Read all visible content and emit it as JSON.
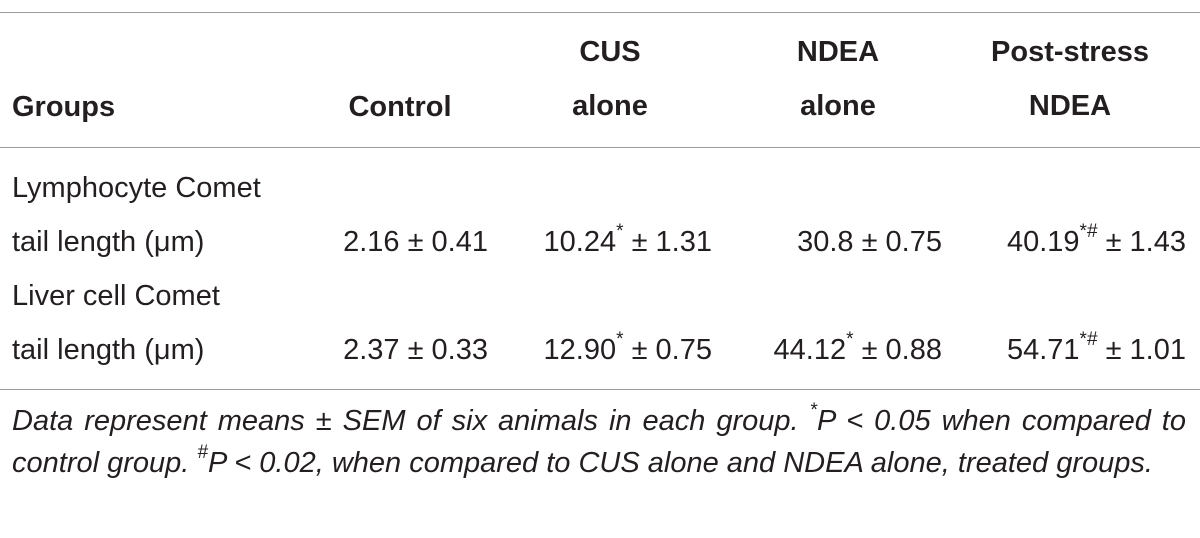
{
  "table": {
    "headers": {
      "groups": "Groups",
      "control": "Control",
      "cus": [
        "CUS",
        "alone"
      ],
      "ndea": [
        "NDEA",
        "alone"
      ],
      "post": [
        "Post-stress",
        "NDEA"
      ]
    },
    "rows": [
      {
        "label_line1": "Lymphocyte Comet",
        "label_line2": "tail length (μm)",
        "control": "2.16 ± 0.41",
        "cus_val": "10.24",
        "cus_sup": "*",
        "cus_err": " ± 1.31",
        "ndea_val": "30.8 ± 0.75",
        "ndea_sup": "",
        "ndea_err": "",
        "post_val": "40.19",
        "post_sup": "*#",
        "post_err": " ± 1.43"
      },
      {
        "label_line1": "Liver cell Comet",
        "label_line2": "tail length (μm)",
        "control": "2.37 ± 0.33",
        "cus_val": "12.90",
        "cus_sup": "*",
        "cus_err": " ± 0.75",
        "ndea_val": "44.12",
        "ndea_sup": "*",
        "ndea_err": " ± 0.88",
        "post_val": "54.71",
        "post_sup": "*#",
        "post_err": " ± 1.01"
      }
    ],
    "footnote": {
      "part1": "Data represent means ± SEM of six animals in each group. ",
      "sup1": "*",
      "part2": "P < 0.05 when compared to control group. ",
      "sup2": "#",
      "part3": "P < 0.02, when compared to CUS alone and NDEA alone, treated groups."
    }
  }
}
